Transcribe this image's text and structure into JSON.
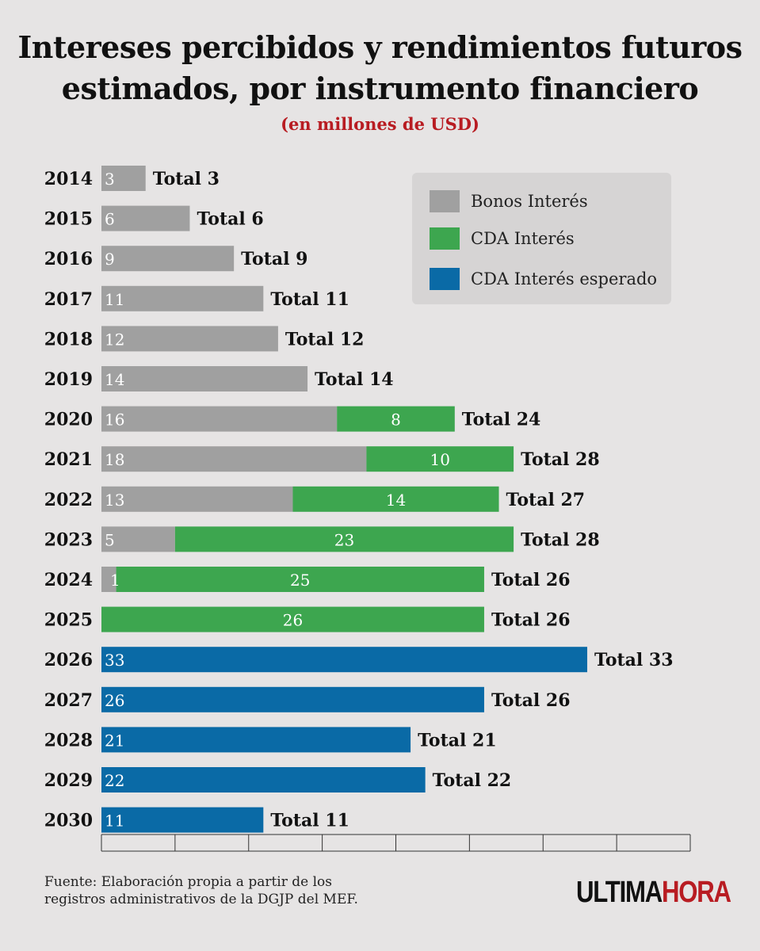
{
  "header": {
    "title_line1": "Intereses percibidos y rendimientos futuros",
    "title_line2": "estimados, por instrumento financiero",
    "subtitle": "(en millones de USD)"
  },
  "legend": {
    "items": [
      {
        "label": "Bonos Interés",
        "color": "#a0a0a0"
      },
      {
        "label": "CDA Interés",
        "color": "#3da64f"
      },
      {
        "label": "CDA Interés esperado",
        "color": "#0a6aa6"
      }
    ]
  },
  "chart_data": {
    "type": "bar",
    "orientation": "horizontal",
    "stacked": true,
    "title": "Intereses percibidos y rendimientos futuros estimados, por instrumento financiero",
    "subtitle": "(en millones de USD)",
    "categories": [
      "2014",
      "2015",
      "2016",
      "2017",
      "2018",
      "2019",
      "2020",
      "2021",
      "2022",
      "2023",
      "2024",
      "2025",
      "2026",
      "2027",
      "2028",
      "2029",
      "2030"
    ],
    "series": [
      {
        "name": "Bonos Interés",
        "color": "#a0a0a0",
        "values": [
          3,
          6,
          9,
          11,
          12,
          14,
          16,
          18,
          13,
          5,
          1,
          0,
          0,
          0,
          0,
          0,
          0
        ],
        "labels": [
          "3",
          "6",
          "9",
          "11",
          "12",
          "14",
          "16",
          "18",
          "13",
          "5",
          "",
          "",
          "",
          "",
          "",
          "",
          ""
        ]
      },
      {
        "name": "CDA Interés",
        "color": "#3da64f",
        "values": [
          0,
          0,
          0,
          0,
          0,
          0,
          8,
          10,
          14,
          23,
          25,
          26,
          0,
          0,
          0,
          0,
          0
        ],
        "labels": [
          "",
          "",
          "",
          "",
          "",
          "",
          "8",
          "10",
          "14",
          "23",
          "25",
          "26",
          "",
          "",
          "",
          "",
          ""
        ]
      },
      {
        "name": "CDA Interés esperado",
        "color": "#0a6aa6",
        "values": [
          0,
          0,
          0,
          0,
          0,
          0,
          0,
          0,
          0,
          0,
          0,
          0,
          33,
          26,
          21,
          22,
          11
        ],
        "labels": [
          "",
          "",
          "",
          "",
          "",
          "",
          "",
          "",
          "",
          "",
          "",
          "",
          "33",
          "26",
          "21",
          "22",
          "11"
        ]
      }
    ],
    "extra_labels": [
      {
        "category": "2024",
        "text": "1",
        "color": "#ffffff"
      }
    ],
    "totals": [
      "Total 3",
      "Total 6",
      "Total 9",
      "Total 11",
      "Total 12",
      "Total 14",
      "Total 24",
      "Total 28",
      "Total 27",
      "Total 28",
      "Total 26",
      "Total 26",
      "Total 33",
      "Total 26",
      "Total 21",
      "Total 22",
      "Total 11"
    ],
    "xlim": [
      0,
      40
    ],
    "xlabel": "",
    "ylabel": "",
    "grid": false,
    "legend_position": "top-right"
  },
  "footer": {
    "source_line1": "Fuente: Elaboración propia a partir de los",
    "source_line2": "registros administrativos de la DGJP del MEF.",
    "logo_part1": "ULTIMA",
    "logo_part2": "HORA"
  }
}
